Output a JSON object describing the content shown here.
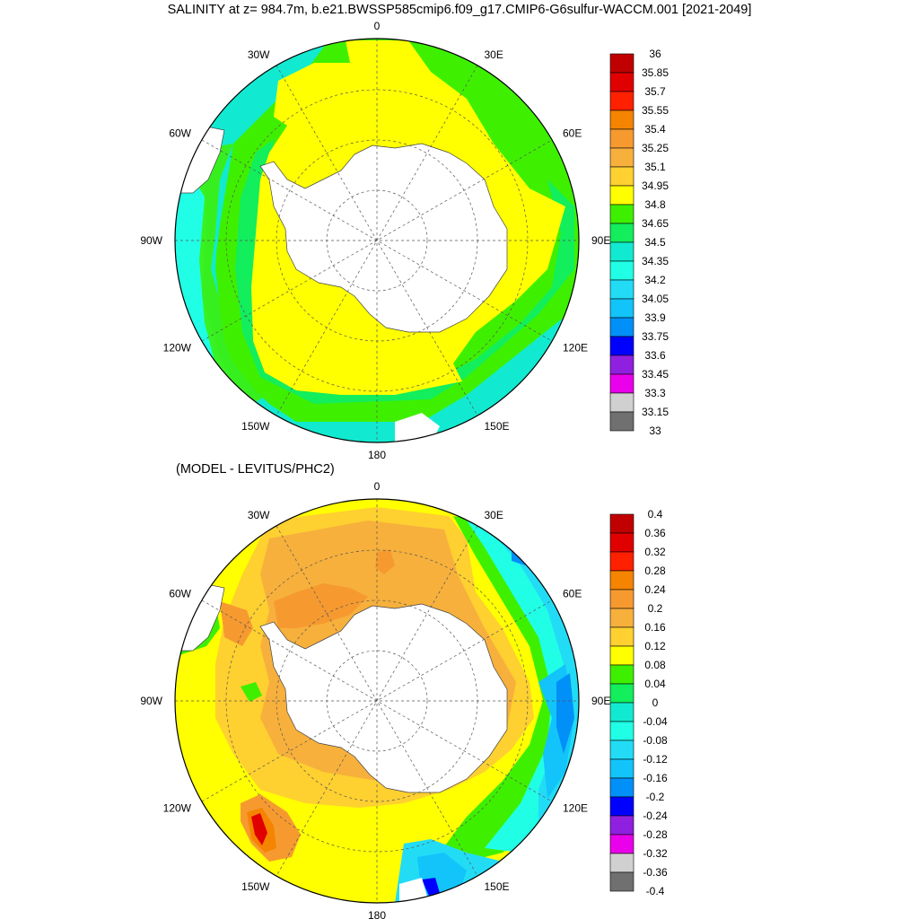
{
  "title": "SALINITY at z= 984.7m, b.e21.BWSSP585cmip6.f09_g17.CMIP6-G6sulfur-WACCM.001 [2021-2049]",
  "bottom_title": "(MODEL - LEVITUS/PHC2)",
  "maps": [
    {
      "name": "salinity",
      "lon_labels": [
        "0",
        "30E",
        "60E",
        "90E",
        "120E",
        "150E",
        "180",
        "150W",
        "120W",
        "90W",
        "60W",
        "30W"
      ],
      "colorbar": {
        "labels": [
          "36",
          "35.85",
          "35.7",
          "35.55",
          "35.4",
          "35.25",
          "35.1",
          "34.95",
          "34.8",
          "34.65",
          "34.5",
          "34.35",
          "34.2",
          "34.05",
          "33.9",
          "33.75",
          "33.6",
          "33.45",
          "33.3",
          "33.15",
          "33"
        ],
        "colors": [
          "#c00000",
          "#e00000",
          "#ff2000",
          "#f58400",
          "#f69a30",
          "#f7b03c",
          "#fed030",
          "#ffff00",
          "#3ef000",
          "#12ee5c",
          "#11ead0",
          "#20ffe6",
          "#22dcf6",
          "#12c4fa",
          "#0090f8",
          "#0000ff",
          "#9020e0",
          "#ea00ea",
          "#d0d0d0",
          "#707070"
        ]
      }
    },
    {
      "name": "difference",
      "lon_labels": [
        "0",
        "30E",
        "60E",
        "90E",
        "120E",
        "150E",
        "180",
        "150W",
        "120W",
        "90W",
        "60W",
        "30W"
      ],
      "colorbar": {
        "labels": [
          "0.4",
          "0.36",
          "0.32",
          "0.28",
          "0.24",
          "0.2",
          "0.16",
          "0.12",
          "0.08",
          "0.04",
          "0",
          "-0.04",
          "-0.08",
          "-0.12",
          "-0.16",
          "-0.2",
          "-0.24",
          "-0.28",
          "-0.32",
          "-0.36",
          "-0.4"
        ],
        "colors": [
          "#c00000",
          "#e00000",
          "#ff2000",
          "#f58400",
          "#f69a30",
          "#f7b03c",
          "#fed030",
          "#ffff00",
          "#3ef000",
          "#12ee5c",
          "#11ead0",
          "#20ffe6",
          "#22dcf6",
          "#12c4fa",
          "#0090f8",
          "#0000ff",
          "#9020e0",
          "#ea00ea",
          "#d0d0d0",
          "#707070"
        ]
      }
    }
  ]
}
